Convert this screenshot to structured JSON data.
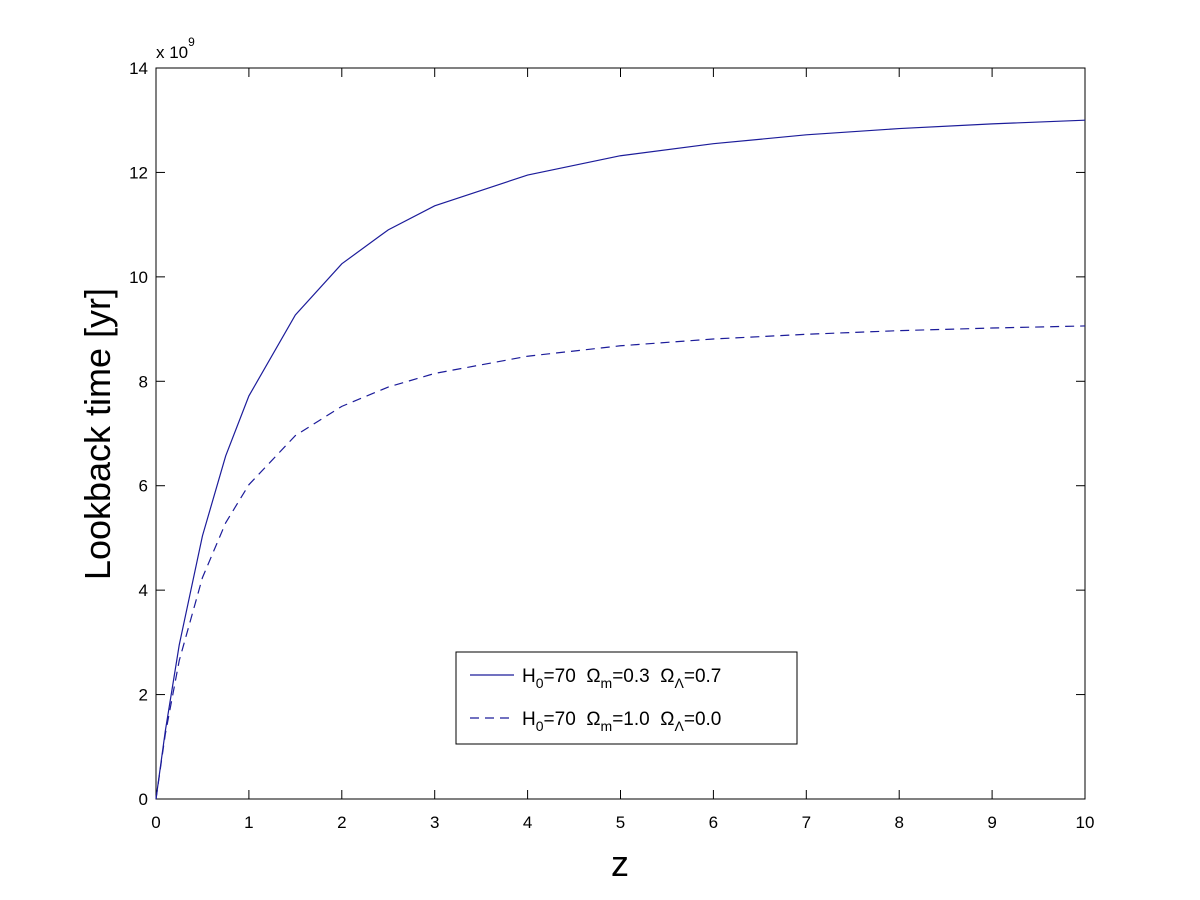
{
  "chart_data": {
    "type": "line",
    "xlabel": "z",
    "ylabel": "Lookback time [yr]",
    "y_multiplier": {
      "base": "x 10",
      "exponent": "9"
    },
    "x": [
      0,
      0.1,
      0.25,
      0.5,
      0.75,
      1,
      1.5,
      2,
      2.5,
      3,
      4,
      5,
      6,
      7,
      8,
      9,
      10
    ],
    "series": [
      {
        "name": [
          {
            "text": "H"
          },
          {
            "text": "0",
            "sub": true
          },
          {
            "text": "=70  Ω"
          },
          {
            "text": "m",
            "sub": true
          },
          {
            "text": "=0.3  Ω"
          },
          {
            "text": "Λ",
            "sub": true
          },
          {
            "text": "=0.7"
          }
        ],
        "color": "#1c1c9a",
        "dash": "solid",
        "values": [
          0,
          1.3,
          2.95,
          5.04,
          6.57,
          7.72,
          9.27,
          10.25,
          10.9,
          11.36,
          11.95,
          12.32,
          12.55,
          12.72,
          12.84,
          12.93,
          13.0
        ]
      },
      {
        "name": [
          {
            "text": "H"
          },
          {
            "text": "0",
            "sub": true
          },
          {
            "text": "=70  Ω"
          },
          {
            "text": "m",
            "sub": true
          },
          {
            "text": "=1.0  Ω"
          },
          {
            "text": "Λ",
            "sub": true
          },
          {
            "text": "=0.0"
          }
        ],
        "color": "#1c1c9a",
        "dash": "dashed",
        "values": [
          0,
          1.24,
          2.65,
          4.24,
          5.29,
          6.02,
          6.96,
          7.52,
          7.89,
          8.15,
          8.48,
          8.68,
          8.81,
          8.9,
          8.97,
          9.02,
          9.06
        ]
      }
    ],
    "xlim": [
      0,
      10
    ],
    "xticks": [
      0,
      1,
      2,
      3,
      4,
      5,
      6,
      7,
      8,
      9,
      10
    ],
    "ylim": [
      0,
      14
    ],
    "yticks": [
      0,
      2,
      4,
      6,
      8,
      10,
      12,
      14
    ],
    "grid": false,
    "legend": "lower center"
  }
}
